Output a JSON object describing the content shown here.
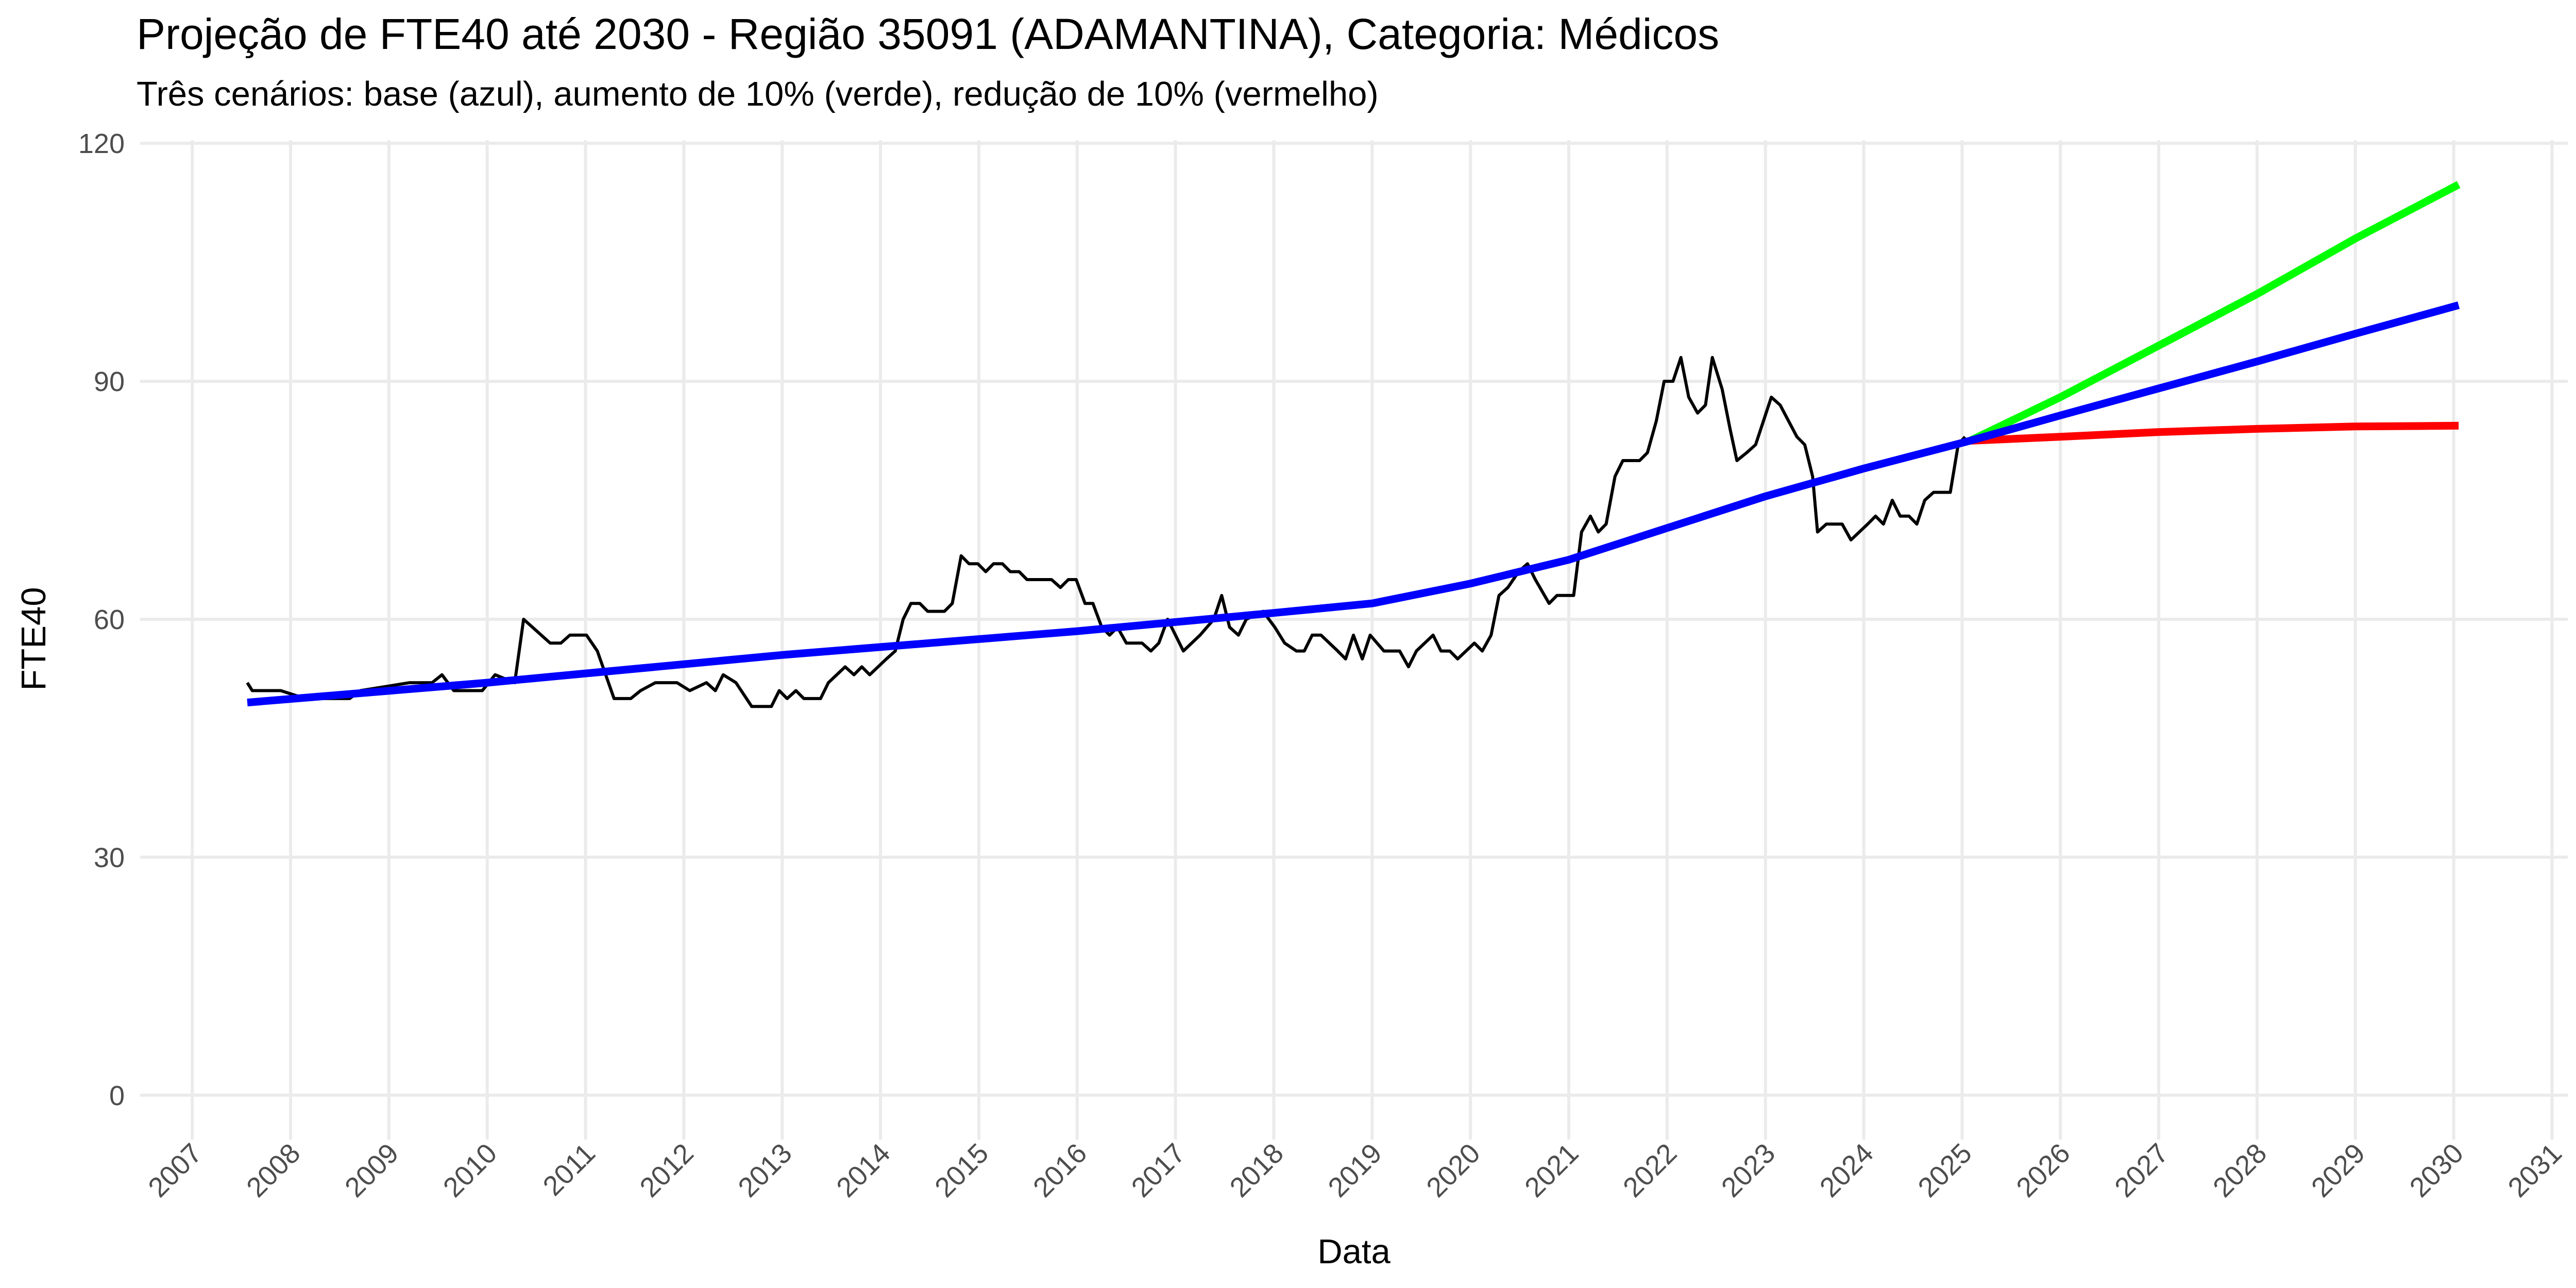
{
  "chart_data": {
    "type": "line",
    "title": "Projeção de FTE40 até 2030 - Região 35091 (ADAMANTINA), Categoria: Médicos",
    "subtitle": "Três cenários: base (azul), aumento de 10% (verde), redução de 10% (vermelho)",
    "x_label": "Data",
    "y_label": "FTE40",
    "xlim": [
      2006.47,
      2031.16
    ],
    "xticks": [
      2007,
      2008,
      2009,
      2010,
      2011,
      2012,
      2013,
      2014,
      2015,
      2016,
      2017,
      2018,
      2019,
      2020,
      2021,
      2022,
      2023,
      2024,
      2025,
      2026,
      2027,
      2028,
      2029,
      2030,
      2031
    ],
    "ylim": [
      -5.6,
      120.4
    ],
    "yticks": [
      0,
      30,
      60,
      90,
      120
    ],
    "grid": true,
    "series": [
      {
        "color": "#000000",
        "width": 6,
        "x": [
          2007.56,
          2007.61,
          2007.9,
          2008.15,
          2008.6,
          2008.71,
          2009.21,
          2009.44,
          2009.54,
          2009.66,
          2009.95,
          2010.08,
          2010.28,
          2010.37,
          2010.64,
          2010.75,
          2010.84,
          2011.01,
          2011.12,
          2011.29,
          2011.46,
          2011.56,
          2011.71,
          2011.93,
          2012.06,
          2012.23,
          2012.32,
          2012.4,
          2012.53,
          2012.69,
          2012.89,
          2012.97,
          2013.05,
          2013.14,
          2013.22,
          2013.39,
          2013.47,
          2013.64,
          2013.73,
          2013.81,
          2013.89,
          2014.06,
          2014.15,
          2014.23,
          2014.31,
          2014.4,
          2014.48,
          2014.65,
          2014.73,
          2014.82,
          2014.9,
          2014.99,
          2015.07,
          2015.15,
          2015.24,
          2015.32,
          2015.41,
          2015.49,
          2015.74,
          2015.83,
          2015.91,
          2015.99,
          2016.08,
          2016.16,
          2016.25,
          2016.33,
          2016.41,
          2016.5,
          2016.66,
          2016.75,
          2016.83,
          2016.92,
          2017.0,
          2017.08,
          2017.25,
          2017.39,
          2017.47,
          2017.55,
          2017.64,
          2017.72,
          2017.89,
          2018.01,
          2018.11,
          2018.23,
          2018.31,
          2018.39,
          2018.48,
          2018.65,
          2018.73,
          2018.81,
          2018.9,
          2018.98,
          2019.12,
          2019.28,
          2019.37,
          2019.45,
          2019.62,
          2019.7,
          2019.79,
          2019.87,
          2020.04,
          2020.12,
          2020.21,
          2020.29,
          2020.38,
          2020.49,
          2020.58,
          2020.66,
          2020.8,
          2020.88,
          2021.05,
          2021.13,
          2021.22,
          2021.3,
          2021.38,
          2021.47,
          2021.55,
          2021.72,
          2021.8,
          2021.89,
          2021.97,
          2022.06,
          2022.14,
          2022.22,
          2022.31,
          2022.39,
          2022.46,
          2022.56,
          2022.64,
          2022.71,
          2022.81,
          2022.9,
          2022.98,
          2023.06,
          2023.15,
          2023.32,
          2023.4,
          2023.48,
          2023.53,
          2023.62,
          2023.78,
          2023.87,
          2024.04,
          2024.12,
          2024.2,
          2024.29,
          2024.37,
          2024.46,
          2024.54,
          2024.62,
          2024.71,
          2024.88,
          2024.96,
          2025.03
        ],
        "values": [
          52,
          51,
          51,
          50,
          50,
          51,
          52,
          52,
          53,
          51,
          51,
          53,
          52,
          60,
          57,
          57,
          58,
          58,
          56,
          50,
          50,
          51,
          52,
          52,
          51,
          52,
          51,
          53,
          52,
          49,
          49,
          51,
          50,
          51,
          50,
          50,
          52,
          54,
          53,
          54,
          53,
          55,
          56,
          60,
          62,
          62,
          61,
          61,
          62,
          68,
          67,
          67,
          66,
          67,
          67,
          66,
          66,
          65,
          65,
          64,
          65,
          65,
          62,
          62,
          59,
          58,
          59,
          57,
          57,
          56,
          57,
          60,
          58,
          56,
          58,
          60,
          63,
          59,
          58,
          60,
          61,
          59,
          57,
          56,
          56,
          58,
          58,
          56,
          55,
          58,
          55,
          58,
          56,
          56,
          54,
          56,
          58,
          56,
          56,
          55,
          57,
          56,
          58,
          63,
          64,
          66,
          67,
          65,
          62,
          63,
          63,
          71,
          73,
          71,
          72,
          78,
          80,
          80,
          81,
          85,
          90,
          90,
          93,
          88,
          86,
          87,
          93,
          89,
          84,
          80,
          81,
          82,
          85,
          88,
          87,
          83,
          82,
          78,
          71,
          72,
          72,
          70,
          72,
          73,
          72,
          75,
          73,
          73,
          72,
          75,
          76,
          76,
          82,
          83
        ]
      },
      {
        "color": "#00ff00",
        "width": 15,
        "x": [
          2025.08,
          2026,
          2027,
          2028,
          2029,
          2030.05
        ],
        "values": [
          82.5,
          88,
          94.5,
          101,
          108,
          114.8
        ]
      },
      {
        "color": "#ff0000",
        "width": 15,
        "x": [
          2025.08,
          2026,
          2027,
          2028,
          2029,
          2030.05
        ],
        "values": [
          82.5,
          83,
          83.6,
          84,
          84.3,
          84.4
        ]
      },
      {
        "color": "#0000ff",
        "width": 15,
        "x": [
          2007.56,
          2010,
          2013,
          2016,
          2018,
          2019,
          2020,
          2021,
          2022,
          2023,
          2024,
          2025.08,
          2026,
          2027,
          2028,
          2029,
          2030.05
        ],
        "values": [
          49.5,
          52,
          55.5,
          58.5,
          60.8,
          62,
          64.5,
          67.5,
          71.5,
          75.5,
          79,
          82.5,
          85.7,
          89.1,
          92.5,
          96,
          99.6
        ]
      }
    ]
  }
}
